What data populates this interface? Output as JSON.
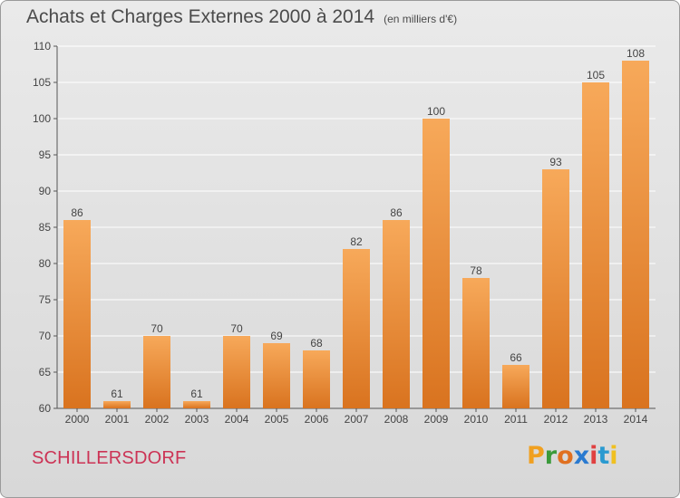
{
  "header": {
    "title": "Achats et Charges Externes 2000 à 2014",
    "subtitle": "(en milliers d'€)"
  },
  "footer": {
    "location": "SCHILLERSDORF",
    "logo_letters": [
      "P",
      "r",
      "o",
      "x",
      "i",
      "t",
      "i"
    ]
  },
  "colors": {
    "bar_top": "#f7a95a",
    "bar_bottom": "#d9731f",
    "axis": "#555555",
    "grid": "#ffffff",
    "location": "#cc3355"
  },
  "chart_data": {
    "type": "bar",
    "title": "Achats et Charges Externes 2000 à 2014",
    "subtitle": "(en milliers d'€)",
    "xlabel": "",
    "ylabel": "",
    "categories": [
      "2000",
      "2001",
      "2002",
      "2003",
      "2004",
      "2005",
      "2006",
      "2007",
      "2008",
      "2009",
      "2010",
      "2011",
      "2012",
      "2013",
      "2014"
    ],
    "values": [
      86,
      61,
      70,
      61,
      70,
      69,
      68,
      82,
      86,
      100,
      78,
      66,
      93,
      105,
      108
    ],
    "ylim": [
      60,
      110
    ],
    "yticks": [
      60,
      65,
      70,
      75,
      80,
      85,
      90,
      95,
      100,
      105,
      110
    ],
    "grid": true,
    "data_labels": true
  }
}
